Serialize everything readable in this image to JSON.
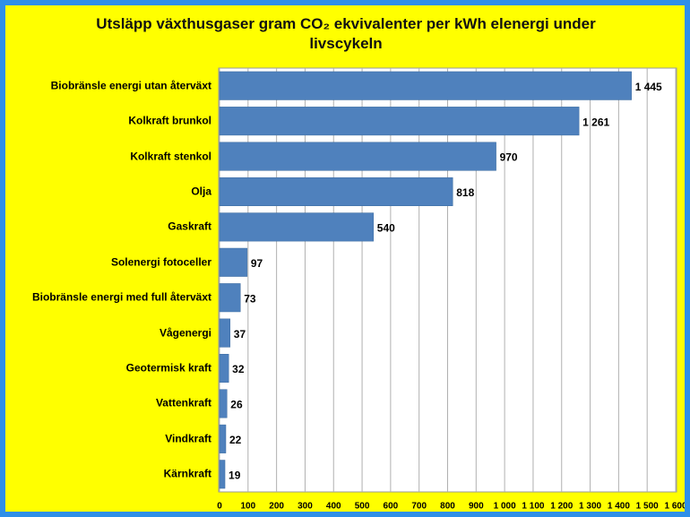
{
  "chart_data": {
    "type": "bar",
    "orientation": "horizontal",
    "title": "Utsläpp växthusgaser gram CO₂ ekvivalenter per kWh elenergi under livscykeln",
    "categories": [
      "Biobränsle energi utan återväxt",
      "Kolkraft brunkol",
      "Kolkraft stenkol",
      "Olja",
      "Gaskraft",
      "Solenergi fotoceller",
      "Biobränsle energi med full återväxt",
      "Vågenergi",
      "Geotermisk kraft",
      "Vattenkraft",
      "Vindkraft",
      "Kärnkraft"
    ],
    "values": [
      1445,
      1261,
      970,
      818,
      540,
      97,
      73,
      37,
      32,
      26,
      22,
      19
    ],
    "value_labels": [
      "1 445",
      "1 261",
      "970",
      "818",
      "540",
      "97",
      "73",
      "37",
      "32",
      "26",
      "22",
      "19"
    ],
    "color": "#4f81bd",
    "xlim": [
      0,
      1600
    ],
    "xticks": [
      0,
      100,
      200,
      300,
      400,
      500,
      600,
      700,
      800,
      900,
      {
        "value": 1000,
        "label": "1 000"
      },
      {
        "value": 1100,
        "label": "1 100"
      },
      {
        "value": 1200,
        "label": "1 200"
      },
      {
        "value": 1300,
        "label": "1 300"
      },
      {
        "value": 1400,
        "label": "1 400"
      },
      {
        "value": 1500,
        "label": "1 500"
      },
      {
        "value": 1600,
        "label": "1 600"
      }
    ],
    "grid": true
  }
}
